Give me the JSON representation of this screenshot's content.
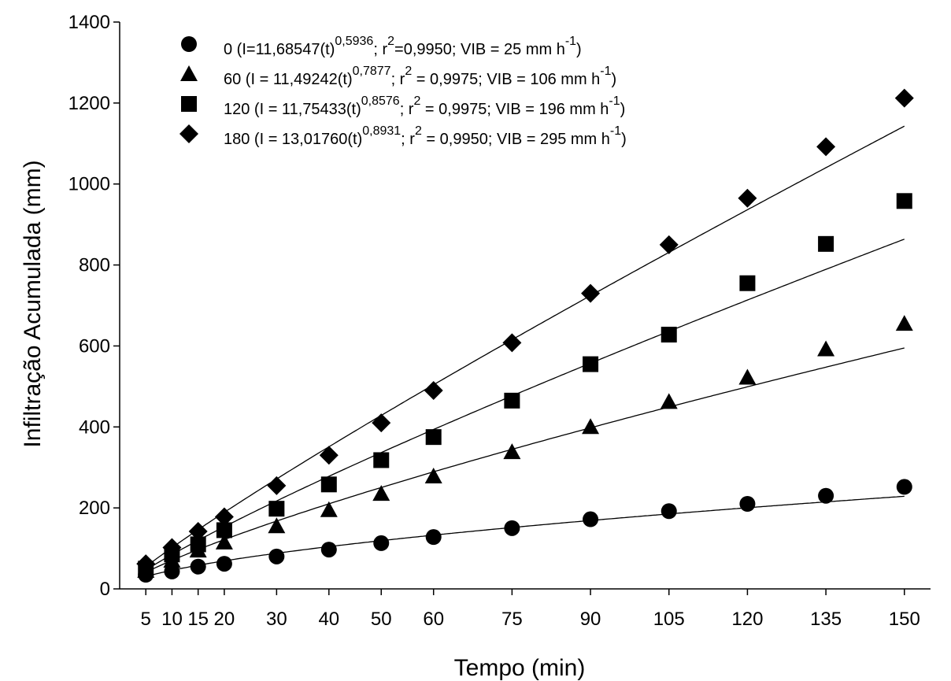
{
  "chart_data": {
    "type": "scatter",
    "xlabel": "Tempo (min)",
    "ylabel": "Infiltração Acumulada (mm)",
    "ylim": [
      0,
      1400
    ],
    "yticks": [
      0,
      200,
      400,
      600,
      800,
      1000,
      1200,
      1400
    ],
    "xticks": [
      5,
      10,
      15,
      20,
      30,
      40,
      50,
      60,
      75,
      90,
      105,
      120,
      135,
      150
    ],
    "xtick_labels": [
      "5",
      "10",
      "15",
      "20",
      "30",
      "40",
      "50",
      "60",
      "75",
      "90",
      "105",
      "120",
      "135",
      "150"
    ],
    "grid": false,
    "legend_position": "top-left",
    "series": [
      {
        "name": "0",
        "marker": "circle",
        "fit": {
          "a": 11.68547,
          "b": 0.5936
        },
        "legend_parts": [
          "0 (I=11,68547(t)",
          "0,5936",
          "; r",
          "2",
          "=0,9950; VIB = 25 mm h",
          "-1",
          ")"
        ],
        "values": [
          35,
          43,
          55,
          62,
          80,
          97,
          113,
          128,
          150,
          172,
          192,
          210,
          230,
          252
        ]
      },
      {
        "name": "60",
        "marker": "triangle",
        "fit": {
          "a": 11.49242,
          "b": 0.7877
        },
        "legend_parts": [
          "60 (I = 11,49242(t)",
          "0,7877",
          "; r",
          "2",
          " = 0,9975; VIB = 106 mm h",
          "-1",
          ")"
        ],
        "values": [
          45,
          70,
          95,
          115,
          155,
          195,
          235,
          278,
          338,
          400,
          462,
          522,
          592,
          655
        ]
      },
      {
        "name": "120",
        "marker": "square",
        "fit": {
          "a": 11.75433,
          "b": 0.8576
        },
        "legend_parts": [
          "120 (I = 11,75433(t)",
          "0,8576",
          "; r",
          "2",
          " = 0,9975; VIB = 196 mm h",
          "-1",
          ")"
        ],
        "values": [
          50,
          85,
          110,
          145,
          198,
          258,
          318,
          375,
          465,
          555,
          628,
          755,
          852,
          958
        ]
      },
      {
        "name": "180",
        "marker": "diamond",
        "fit": {
          "a": 13.0176,
          "b": 0.8931
        },
        "legend_parts": [
          "180 (I = 13,01760(t)",
          "0,8931",
          "; r",
          "2",
          " = 0,9950; VIB = 295 mm h",
          "-1",
          ")"
        ],
        "values": [
          62,
          102,
          142,
          178,
          255,
          330,
          410,
          490,
          608,
          730,
          850,
          965,
          1092,
          1212
        ]
      }
    ]
  }
}
